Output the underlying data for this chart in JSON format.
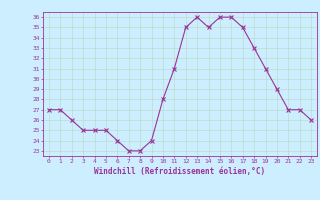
{
  "x": [
    0,
    1,
    2,
    3,
    4,
    5,
    6,
    7,
    8,
    9,
    10,
    11,
    12,
    13,
    14,
    15,
    16,
    17,
    18,
    19,
    20,
    21,
    22,
    23
  ],
  "y": [
    27,
    27,
    26,
    25,
    25,
    25,
    24,
    23,
    23,
    24,
    28,
    31,
    35,
    36,
    35,
    36,
    36,
    35,
    33,
    31,
    29,
    27,
    27,
    26
  ],
  "line_color": "#993399",
  "marker_color": "#993399",
  "bg_color": "#cceeff",
  "grid_color": "#bbddcc",
  "xlabel": "Windchill (Refroidissement éolien,°C)",
  "xlim": [
    -0.5,
    23.5
  ],
  "ylim": [
    22.5,
    36.5
  ],
  "yticks": [
    23,
    24,
    25,
    26,
    27,
    28,
    29,
    30,
    31,
    32,
    33,
    34,
    35,
    36
  ],
  "xticks": [
    0,
    1,
    2,
    3,
    4,
    5,
    6,
    7,
    8,
    9,
    10,
    11,
    12,
    13,
    14,
    15,
    16,
    17,
    18,
    19,
    20,
    21,
    22,
    23
  ]
}
